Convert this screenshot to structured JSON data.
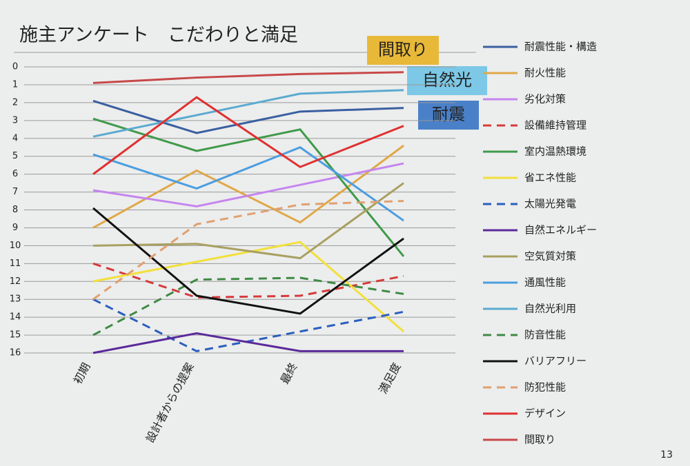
{
  "chart_data": {
    "type": "line",
    "title": "施主アンケート　こだわりと満足",
    "categories": [
      "初期",
      "設計者からの提案",
      "最終",
      "満足度"
    ],
    "ylim": [
      0,
      16
    ],
    "y_reversed": true,
    "yticks": [
      0,
      1,
      2,
      3,
      4,
      5,
      6,
      7,
      8,
      9,
      10,
      11,
      12,
      13,
      14,
      15,
      16
    ],
    "grid": true,
    "legend": "right",
    "annotations": [
      "間取り",
      "自然光",
      "耐震"
    ],
    "page_number": "13",
    "series": [
      {
        "name": "耐震性能・構造",
        "color": "#3a5fa0",
        "dash": false,
        "values": [
          1.9,
          3.7,
          2.5,
          2.3
        ]
      },
      {
        "name": "耐火性能",
        "color": "#e0a848",
        "dash": false,
        "values": [
          9,
          5.8,
          8.7,
          4.4
        ]
      },
      {
        "name": "劣化対策",
        "color": "#c585ee",
        "dash": false,
        "values": [
          6.9,
          7.8,
          6.6,
          5.4
        ]
      },
      {
        "name": "設備維持管理",
        "color": "#d63a3a",
        "dash": true,
        "values": [
          11,
          12.9,
          12.8,
          11.7
        ]
      },
      {
        "name": "室内温熱環境",
        "color": "#3f9a4a",
        "dash": false,
        "values": [
          2.9,
          4.7,
          3.5,
          10.6
        ]
      },
      {
        "name": "省エネ性能",
        "color": "#f2e03a",
        "dash": false,
        "values": [
          12,
          10.9,
          9.8,
          14.8
        ]
      },
      {
        "name": "太陽光発電",
        "color": "#2a5fbf",
        "dash": true,
        "values": [
          13,
          15.9,
          14.8,
          13.7
        ]
      },
      {
        "name": "自然エネルギー",
        "color": "#5a2a9a",
        "dash": false,
        "values": [
          16,
          14.9,
          15.9,
          15.9
        ]
      },
      {
        "name": "空気質対策",
        "color": "#a8a060",
        "dash": false,
        "values": [
          10,
          9.9,
          10.7,
          6.5
        ]
      },
      {
        "name": "通風性能",
        "color": "#4a9ee0",
        "dash": false,
        "values": [
          4.9,
          6.8,
          4.5,
          8.6
        ]
      },
      {
        "name": "自然光利用",
        "color": "#5aaad0",
        "dash": false,
        "values": [
          3.9,
          2.7,
          1.5,
          1.3
        ]
      },
      {
        "name": "防音性能",
        "color": "#3f8a45",
        "dash": true,
        "values": [
          15,
          11.9,
          11.8,
          12.7
        ]
      },
      {
        "name": "バリアフリー",
        "color": "#111111",
        "dash": false,
        "values": [
          7.9,
          12.8,
          13.8,
          9.6
        ]
      },
      {
        "name": "防犯性能",
        "color": "#e0a070",
        "dash": true,
        "values": [
          13,
          8.8,
          7.7,
          7.5
        ]
      },
      {
        "name": "デザイン",
        "color": "#e03030",
        "dash": false,
        "values": [
          6,
          1.7,
          5.6,
          3.3
        ]
      },
      {
        "name": "間取り",
        "color": "#c84848",
        "dash": false,
        "values": [
          0.9,
          0.6,
          0.4,
          0.3
        ]
      }
    ]
  }
}
